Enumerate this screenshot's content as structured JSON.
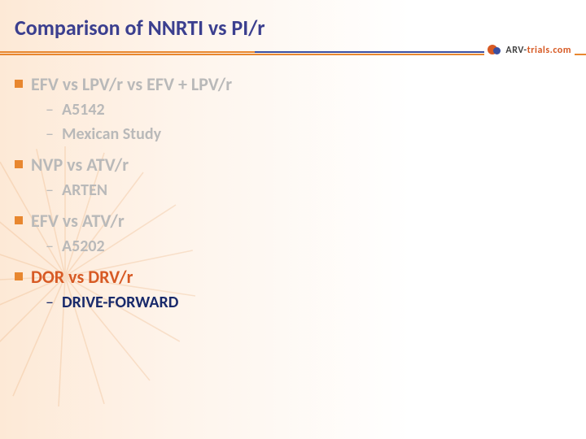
{
  "title": {
    "text": "Comparison of NNRTI vs PI/r",
    "color": "#3b3f8f"
  },
  "divider": {
    "segment1_color": "#e8872f",
    "segment2_color": "#3b4fa0",
    "full_color": "#e8872f"
  },
  "logo": {
    "prefix": "ARV-",
    "suffix": "trials.com"
  },
  "colors": {
    "bullet_square": "#e8872f",
    "muted_text": "#b9b9b9",
    "highlight_orange": "#d75a24",
    "highlight_navy": "#192a6b"
  },
  "items": [
    {
      "label": "EFV vs LPV/r vs EFV + LPV/r",
      "label_color": "#b9b9b9",
      "subs": [
        {
          "text": "A5142",
          "color": "#b9b9b9",
          "dash_color": "#b9b9b9"
        },
        {
          "text": "Mexican Study",
          "color": "#b9b9b9",
          "dash_color": "#b9b9b9"
        }
      ]
    },
    {
      "label": "NVP vs ATV/r",
      "label_color": "#b9b9b9",
      "subs": [
        {
          "text": "ARTEN",
          "color": "#b9b9b9",
          "dash_color": "#b9b9b9"
        }
      ]
    },
    {
      "label": "EFV vs ATV/r",
      "label_color": "#b9b9b9",
      "subs": [
        {
          "text": "A5202",
          "color": "#b9b9b9",
          "dash_color": "#b9b9b9"
        }
      ]
    },
    {
      "label": "DOR vs DRV/r",
      "label_color": "#d75a24",
      "subs": [
        {
          "text": "DRIVE-FORWARD",
          "color": "#192a6b",
          "dash_color": "#192a6b"
        }
      ]
    }
  ]
}
